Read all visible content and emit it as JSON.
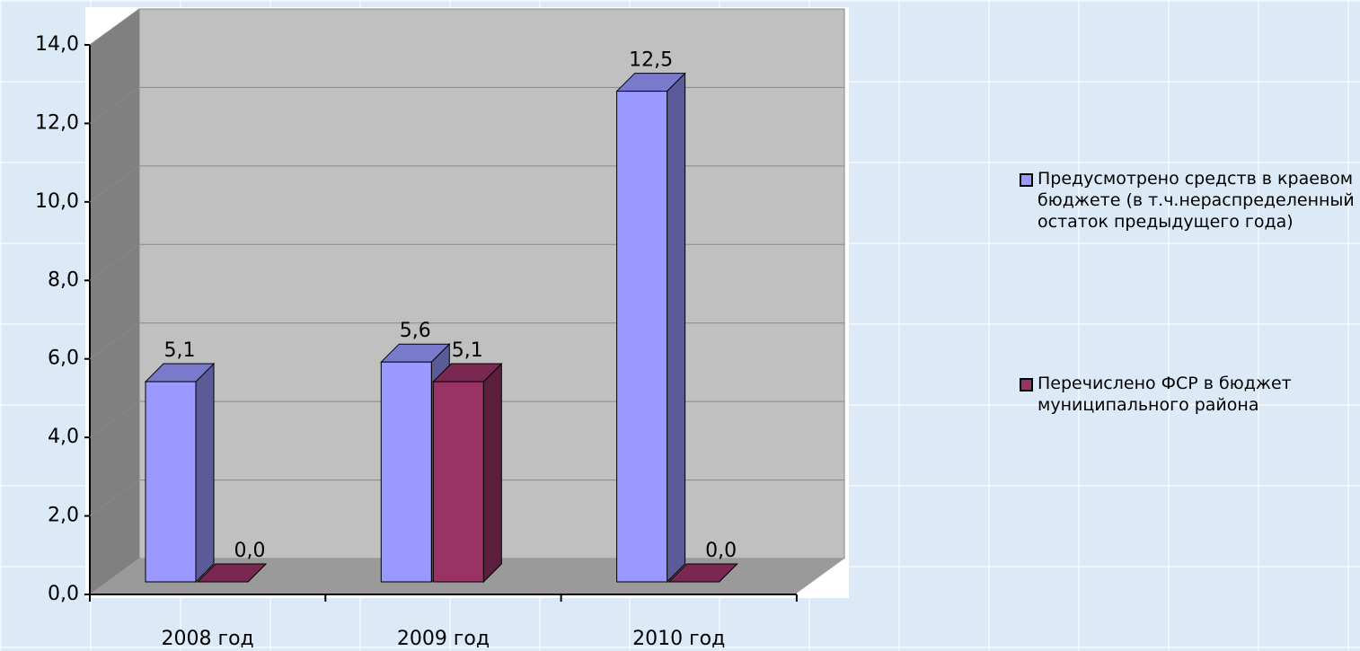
{
  "chart_data": {
    "type": "bar3d",
    "categories": [
      "2008 год",
      "2009 год",
      "2010 год"
    ],
    "series": [
      {
        "name": "Предусмотрено средств в краевом бюджете (в т.ч.нераспределенный остаток предыдущего года)",
        "color": "#9999ff",
        "values": [
          5.1,
          5.6,
          12.5
        ],
        "value_labels": [
          "5,1",
          "5,6",
          "12,5"
        ]
      },
      {
        "name": "Перечислено ФСР в бюджет муниципального района",
        "color": "#993366",
        "values": [
          0.0,
          5.1,
          0.0
        ],
        "value_labels": [
          "0,0",
          "5,1",
          "0,0"
        ]
      }
    ],
    "ylim": [
      0,
      14
    ],
    "yticks": [
      {
        "value": 0,
        "label": "0,0"
      },
      {
        "value": 2,
        "label": "2,0"
      },
      {
        "value": 4,
        "label": "4,0"
      },
      {
        "value": 6,
        "label": "6,0"
      },
      {
        "value": 8,
        "label": "8,0"
      },
      {
        "value": 10,
        "label": "10,0"
      },
      {
        "value": 12,
        "label": "12,0"
      },
      {
        "value": 14,
        "label": "14,0"
      }
    ],
    "grid": true,
    "legend": "right"
  }
}
